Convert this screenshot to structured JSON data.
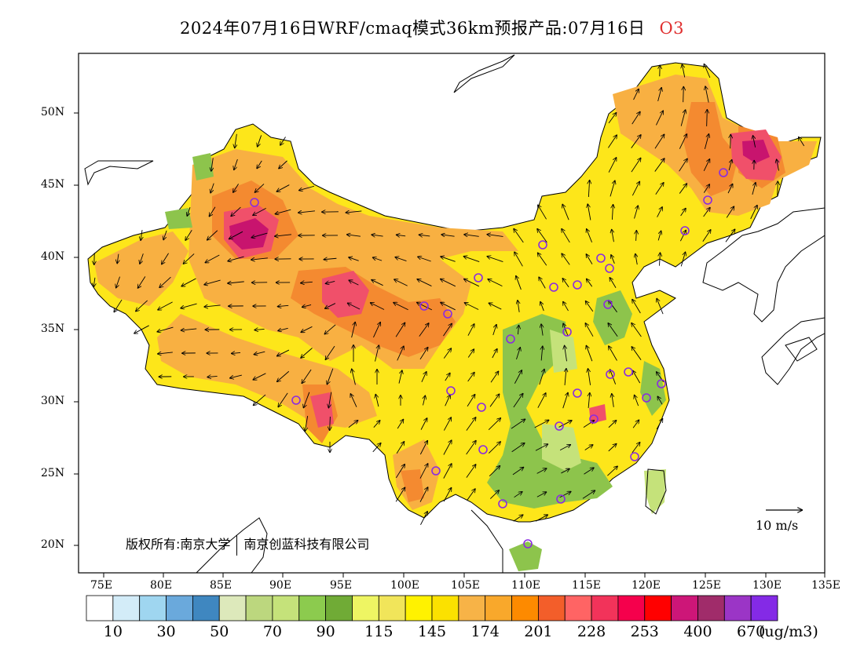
{
  "title": {
    "main": "2024年07月16日WRF/cmaq模式36km预报产品:07月16日",
    "species": "O3"
  },
  "copyright": {
    "prefix": "版权所有:",
    "org1": "南京大学",
    "org2": "南京创蓝科技有限公司"
  },
  "wind_scale": {
    "label": "10 m/s"
  },
  "axes": {
    "lat_labels": [
      "50N",
      "45N",
      "40N",
      "35N",
      "30N",
      "25N",
      "20N"
    ],
    "lon_labels": [
      "75E",
      "80E",
      "85E",
      "90E",
      "95E",
      "100E",
      "105E",
      "110E",
      "115E",
      "120E",
      "125E",
      "130E",
      "135E"
    ]
  },
  "colorbar": {
    "unit": "(ug/m3)",
    "labels": [
      "10",
      "30",
      "50",
      "70",
      "90",
      "115",
      "145",
      "174",
      "201",
      "228",
      "253",
      "400",
      "670"
    ],
    "colors": [
      "#ffffff",
      "#d3ecf8",
      "#9fd6f0",
      "#6aa9dc",
      "#3f87c0",
      "#dde9bb",
      "#bcd77e",
      "#c5e27a",
      "#8ccb4e",
      "#70ab36",
      "#eef563",
      "#f1e55a",
      "#fff200",
      "#fbe100",
      "#f7b347",
      "#f9a82b",
      "#fd8a00",
      "#f35e2a",
      "#ff6464",
      "#f2335a",
      "#f5004c",
      "#ff0000",
      "#cd1678",
      "#a02c6a",
      "#9b35c6",
      "#842ae6"
    ]
  },
  "colors": {
    "yellow": "#fde61a",
    "orange": "#f8b042",
    "darkorange": "#f48a30",
    "red": "#f0506a",
    "magenta": "#c8146e",
    "green": "#8dc44c",
    "lightgreen": "#c5e27a",
    "station": "#8a2be2"
  }
}
